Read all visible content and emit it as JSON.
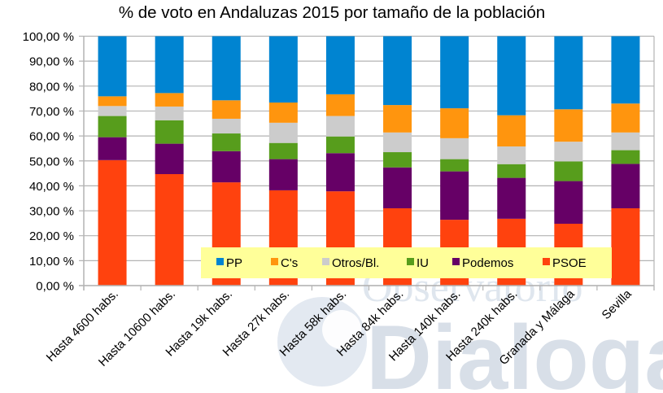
{
  "chart_data": {
    "type": "bar",
    "stacked": true,
    "title": "% de voto en Andaluzas 2015 por tamaño de la población",
    "xlabel": "",
    "ylabel": "",
    "ylim": [
      0,
      100
    ],
    "y_ticks": [
      "0,00 %",
      "10,00 %",
      "20,00 %",
      "30,00 %",
      "40,00 %",
      "50,00 %",
      "60,00 %",
      "70,00 %",
      "80,00 %",
      "90,00 %",
      "100,00 %"
    ],
    "grid": true,
    "legend_position": "bottom-inside",
    "categories": [
      "Hasta 4600 habs.",
      "Hasta 10600 habs.",
      "Hasta 19k habs.",
      "Hasta 27k habs.",
      "Hasta 58k habs.",
      "Hasta 84k habs.",
      "Hasta 140k habs.",
      "Hasta 240k habs.",
      "Granada y Málaga",
      "Sevilla"
    ],
    "series": [
      {
        "name": "PSOE",
        "color": "#ff420e",
        "values": [
          50.3,
          44.7,
          41.4,
          38.2,
          37.8,
          31.0,
          26.4,
          26.8,
          24.8,
          31.0
        ]
      },
      {
        "name": "Podemos",
        "color": "#660066",
        "values": [
          9.2,
          12.2,
          12.5,
          12.5,
          15.3,
          16.4,
          19.4,
          16.4,
          17.1,
          17.8
        ]
      },
      {
        "name": "IU",
        "color": "#579d1c",
        "values": [
          8.5,
          9.4,
          7.1,
          6.5,
          6.7,
          6.1,
          4.9,
          5.5,
          7.9,
          5.5
        ]
      },
      {
        "name": "Otros/Bl.",
        "color": "#cccccc",
        "values": [
          4.0,
          5.5,
          5.9,
          8.1,
          8.2,
          7.9,
          8.4,
          7.1,
          7.9,
          7.1
        ]
      },
      {
        "name": "C's",
        "color": "#ff950e",
        "values": [
          3.9,
          5.4,
          7.4,
          8.1,
          8.7,
          11.0,
          12.0,
          12.5,
          13.0,
          11.6
        ]
      },
      {
        "name": "PP",
        "color": "#0084d1",
        "values": [
          24.1,
          22.8,
          25.7,
          26.6,
          23.3,
          27.6,
          28.9,
          31.7,
          29.3,
          27.0
        ]
      }
    ],
    "legend_order": [
      "PP",
      "C's",
      "Otros/Bl.",
      "IU",
      "Podemos",
      "PSOE"
    ]
  },
  "watermark": {
    "line1": "Observatorio",
    "line2": "Dialoga"
  },
  "colors": {
    "legend_bg": "#ffff99",
    "grid": "#b3b3b3",
    "axis": "#b3b3b3"
  }
}
